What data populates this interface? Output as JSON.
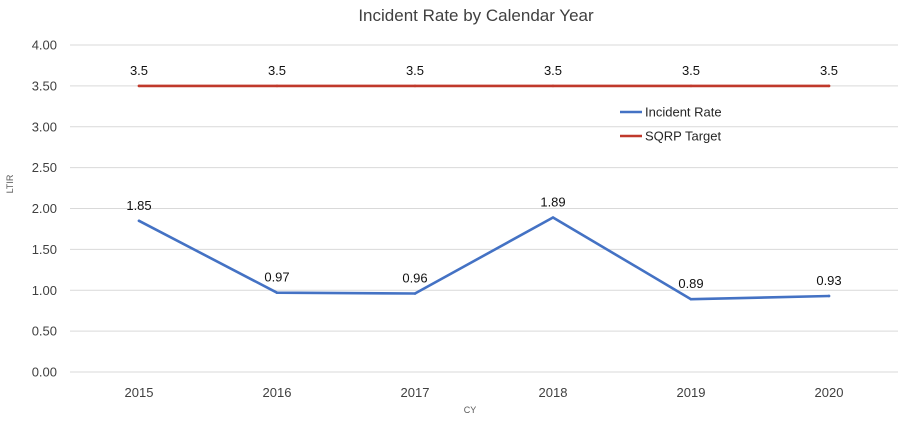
{
  "chart_data": {
    "type": "line",
    "title": "Incident Rate by Calendar Year",
    "xlabel": "CY",
    "ylabel": "LTIR",
    "categories": [
      "2015",
      "2016",
      "2017",
      "2018",
      "2019",
      "2020"
    ],
    "ylim": [
      0,
      4
    ],
    "yticks": [
      "0.00",
      "0.50",
      "1.00",
      "1.50",
      "2.00",
      "2.50",
      "3.00",
      "3.50",
      "4.00"
    ],
    "grid": true,
    "legend_position": "right",
    "series": [
      {
        "name": "Incident Rate",
        "color": "#4472c4",
        "values": [
          1.85,
          0.97,
          0.96,
          1.89,
          0.89,
          0.93
        ],
        "labels": [
          "1.85",
          "0.97",
          "0.96",
          "1.89",
          "0.89",
          "0.93"
        ]
      },
      {
        "name": "SQRP Target",
        "color": "#c0392b",
        "values": [
          3.5,
          3.5,
          3.5,
          3.5,
          3.5,
          3.5
        ],
        "labels": [
          "3.5",
          "3.5",
          "3.5",
          "3.5",
          "3.5",
          "3.5"
        ]
      }
    ]
  }
}
